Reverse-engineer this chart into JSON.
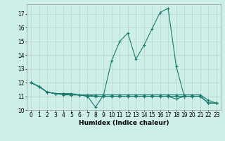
{
  "xlabel": "Humidex (Indice chaleur)",
  "background_color": "#ceeee8",
  "grid_color": "#b8d8d2",
  "line_color": "#1a7a6e",
  "x": [
    0,
    1,
    2,
    3,
    4,
    5,
    6,
    7,
    8,
    9,
    10,
    11,
    12,
    13,
    14,
    15,
    16,
    17,
    18,
    19,
    20,
    21,
    22,
    23
  ],
  "series1": [
    12.0,
    11.7,
    11.3,
    11.2,
    11.1,
    11.1,
    11.1,
    11.0,
    10.2,
    11.1,
    13.6,
    15.0,
    15.6,
    13.7,
    14.7,
    15.9,
    17.1,
    17.4,
    13.2,
    11.0,
    11.0,
    11.0,
    10.5,
    10.5
  ],
  "series2": [
    12.0,
    11.7,
    11.3,
    11.2,
    11.2,
    11.1,
    11.1,
    11.0,
    11.0,
    11.0,
    11.0,
    11.0,
    11.0,
    11.0,
    11.0,
    11.0,
    11.0,
    11.0,
    11.0,
    11.0,
    11.0,
    11.0,
    10.5,
    10.5
  ],
  "series3": [
    12.0,
    11.7,
    11.3,
    11.2,
    11.2,
    11.1,
    11.1,
    11.1,
    11.0,
    11.0,
    11.0,
    11.0,
    11.0,
    11.0,
    11.0,
    11.0,
    11.0,
    11.0,
    10.8,
    11.0,
    11.0,
    11.0,
    10.5,
    10.5
  ],
  "series4": [
    12.0,
    11.7,
    11.3,
    11.2,
    11.2,
    11.2,
    11.1,
    11.1,
    11.1,
    11.1,
    11.1,
    11.1,
    11.1,
    11.1,
    11.1,
    11.1,
    11.1,
    11.1,
    11.1,
    11.1,
    11.1,
    11.1,
    10.7,
    10.5
  ],
  "ylim": [
    10.0,
    17.7
  ],
  "yticks": [
    10,
    11,
    12,
    13,
    14,
    15,
    16,
    17
  ],
  "xlim": [
    -0.5,
    23.5
  ],
  "xticks": [
    0,
    1,
    2,
    3,
    4,
    5,
    6,
    7,
    8,
    9,
    10,
    11,
    12,
    13,
    14,
    15,
    16,
    17,
    18,
    19,
    20,
    21,
    22,
    23
  ],
  "tick_fontsize": 5.5,
  "xlabel_fontsize": 6.5
}
